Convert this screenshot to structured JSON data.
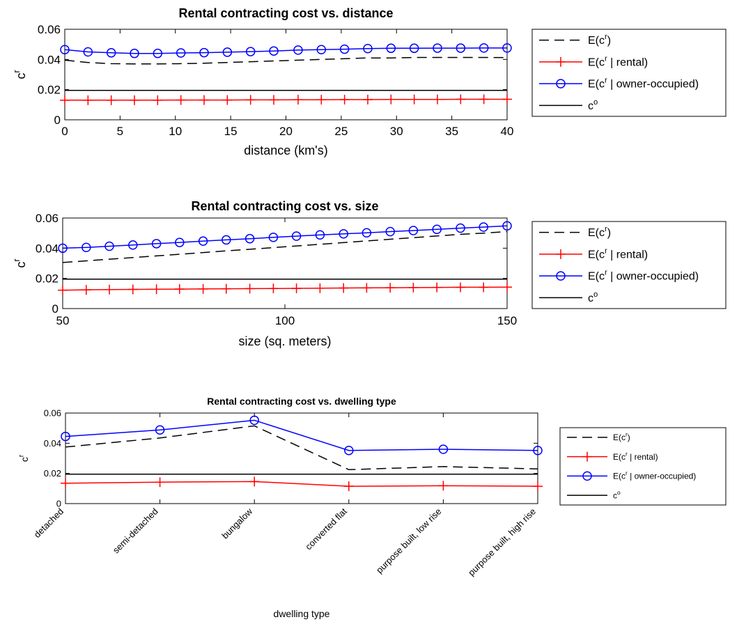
{
  "colors": {
    "expected": "#000000",
    "rental": "#ff0000",
    "owner": "#0000ff",
    "co": "#000000"
  },
  "legend_labels": {
    "expected": "E(c",
    "expected_close": ")",
    "rental": "E(c",
    "rental_close": " | rental)",
    "owner": "E(c",
    "owner_close": " | owner-occupied)",
    "co": "c",
    "sup_r": "r",
    "sup_o": "o"
  },
  "chart_data": [
    {
      "type": "line",
      "title": "Rental contracting cost vs. distance",
      "xlabel": "distance (km's)",
      "ylabel": "c",
      "ylabel_sup": "r",
      "xlim": [
        0,
        40
      ],
      "ylim": [
        0,
        0.06
      ],
      "xticks": [
        "0",
        "5",
        "10",
        "15",
        "20",
        "25",
        "30",
        "35",
        "40"
      ],
      "xtick_values": [
        0,
        5,
        10,
        15,
        20,
        25,
        30,
        35,
        40
      ],
      "yticks": [
        "0",
        "0.02",
        "0.04",
        "0.06"
      ],
      "ytick_values": [
        0,
        0.02,
        0.04,
        0.06
      ],
      "x": [
        0,
        2.1,
        4.2,
        6.3,
        8.4,
        10.5,
        12.6,
        14.7,
        16.8,
        18.9,
        21.1,
        23.2,
        25.3,
        27.4,
        29.5,
        31.6,
        33.7,
        35.8,
        37.9,
        40
      ],
      "series": [
        {
          "key": "expected",
          "values": [
            0.0395,
            0.038,
            0.0372,
            0.037,
            0.037,
            0.0372,
            0.0375,
            0.038,
            0.0385,
            0.039,
            0.0395,
            0.04,
            0.0405,
            0.041,
            0.041,
            0.0413,
            0.0413,
            0.0413,
            0.0413,
            0.0412
          ]
        },
        {
          "key": "rental",
          "values": [
            0.013,
            0.013,
            0.013,
            0.013,
            0.013,
            0.0131,
            0.0131,
            0.0131,
            0.0132,
            0.0132,
            0.0133,
            0.0133,
            0.0134,
            0.0134,
            0.0135,
            0.0135,
            0.0135,
            0.0136,
            0.0136,
            0.0136
          ]
        },
        {
          "key": "owner",
          "values": [
            0.0465,
            0.045,
            0.0444,
            0.044,
            0.044,
            0.0443,
            0.0445,
            0.0448,
            0.0452,
            0.0456,
            0.0462,
            0.0465,
            0.0468,
            0.0472,
            0.0474,
            0.0474,
            0.0475,
            0.0475,
            0.0476,
            0.0476
          ]
        },
        {
          "key": "co",
          "values": [
            0.0195,
            0.0195,
            0.0195,
            0.0195,
            0.0195,
            0.0195,
            0.0195,
            0.0195,
            0.0195,
            0.0195,
            0.0195,
            0.0195,
            0.0195,
            0.0195,
            0.0195,
            0.0195,
            0.0195,
            0.0195,
            0.0195,
            0.0195
          ]
        }
      ]
    },
    {
      "type": "line",
      "title": "Rental contracting cost vs. size",
      "xlabel": "size (sq. meters)",
      "ylabel": "c",
      "ylabel_sup": "r",
      "xlim": [
        50,
        150
      ],
      "ylim": [
        0,
        0.06
      ],
      "xticks": [
        "50",
        "100",
        "150"
      ],
      "xtick_values": [
        50,
        100,
        150
      ],
      "yticks": [
        "0",
        "0.02",
        "0.04",
        "0.06"
      ],
      "ytick_values": [
        0,
        0.02,
        0.04,
        0.06
      ],
      "x": [
        50,
        55.3,
        60.5,
        65.8,
        71.1,
        76.3,
        81.6,
        86.8,
        92.1,
        97.4,
        102.6,
        107.9,
        113.2,
        118.4,
        123.7,
        128.9,
        134.2,
        139.5,
        144.7,
        150
      ],
      "series": [
        {
          "key": "expected",
          "values": [
            0.0305,
            0.0316,
            0.0327,
            0.0338,
            0.0349,
            0.036,
            0.0371,
            0.0382,
            0.0393,
            0.0404,
            0.0415,
            0.0426,
            0.0437,
            0.0448,
            0.0459,
            0.047,
            0.0481,
            0.0492,
            0.05,
            0.051
          ]
        },
        {
          "key": "rental",
          "values": [
            0.0122,
            0.0124,
            0.0126,
            0.0127,
            0.0128,
            0.0129,
            0.013,
            0.0131,
            0.0132,
            0.0133,
            0.0134,
            0.0135,
            0.0136,
            0.0137,
            0.0138,
            0.0139,
            0.014,
            0.0141,
            0.0141,
            0.0142
          ]
        },
        {
          "key": "owner",
          "values": [
            0.04,
            0.0405,
            0.0413,
            0.0421,
            0.043,
            0.0438,
            0.0447,
            0.0455,
            0.0463,
            0.0472,
            0.048,
            0.0488,
            0.0495,
            0.0502,
            0.051,
            0.0517,
            0.0525,
            0.0533,
            0.054,
            0.0548
          ]
        },
        {
          "key": "co",
          "values": [
            0.0195,
            0.0195,
            0.0195,
            0.0195,
            0.0195,
            0.0195,
            0.0195,
            0.0195,
            0.0195,
            0.0195,
            0.0195,
            0.0195,
            0.0195,
            0.0195,
            0.0195,
            0.0195,
            0.0195,
            0.0195,
            0.0195,
            0.0195
          ]
        }
      ]
    },
    {
      "type": "line",
      "title": "Rental contracting cost vs. dwelling type",
      "xlabel": "dwelling type",
      "ylabel": "c",
      "ylabel_sup": "r",
      "xlim": [
        1,
        6
      ],
      "ylim": [
        0,
        0.06
      ],
      "categories": [
        "detached",
        "semi-detached",
        "bungalow",
        "converted flat",
        "purpose built, low rise",
        "purpose built, high rise"
      ],
      "xtick_values": [
        1,
        2,
        3,
        4,
        5,
        6
      ],
      "yticks": [
        "0",
        "0.02",
        "0.04",
        "0.06"
      ],
      "ytick_values": [
        0,
        0.02,
        0.04,
        0.06
      ],
      "x": [
        1,
        2,
        3,
        4,
        5,
        6
      ],
      "series": [
        {
          "key": "expected",
          "values": [
            0.0375,
            0.0435,
            0.0515,
            0.0225,
            0.0245,
            0.023
          ]
        },
        {
          "key": "rental",
          "values": [
            0.0135,
            0.0142,
            0.0146,
            0.0115,
            0.0118,
            0.0115
          ]
        },
        {
          "key": "owner",
          "values": [
            0.0445,
            0.0488,
            0.0552,
            0.0352,
            0.036,
            0.0352
          ]
        },
        {
          "key": "co",
          "values": [
            0.0195,
            0.0195,
            0.0195,
            0.0195,
            0.0195,
            0.0195
          ]
        }
      ]
    }
  ]
}
